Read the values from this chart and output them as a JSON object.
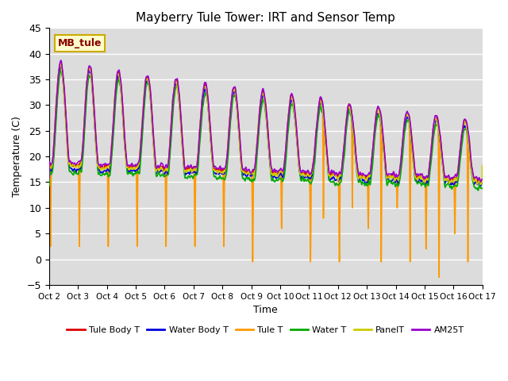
{
  "title": "Mayberry Tule Tower: IRT and Sensor Temp",
  "xlabel": "Time",
  "ylabel": "Temperature (C)",
  "ylim": [
    -5,
    45
  ],
  "xlim": [
    0,
    15
  ],
  "plot_bg": "#dcdcdc",
  "grid_color": "white",
  "series_colors": {
    "Tule Body T": "#dd0000",
    "Water Body T": "#0000dd",
    "Tule T": "#ff9900",
    "Water T": "#00aa00",
    "PanelT": "#cccc00",
    "AM25T": "#9900cc"
  },
  "xtick_labels": [
    "Oct 2",
    "Oct 3",
    "Oct 4",
    "Oct 5",
    "Oct 6",
    "Oct 7",
    "Oct 8",
    "Oct 9",
    "Oct 10",
    "Oct 11",
    "Oct 12",
    "Oct 13",
    "Oct 14",
    "Oct 15",
    "Oct 16",
    "Oct 17"
  ],
  "xtick_positions": [
    0,
    1,
    2,
    3,
    4,
    5,
    6,
    7,
    8,
    9,
    10,
    11,
    12,
    13,
    14,
    15
  ],
  "yticks": [
    -5,
    0,
    5,
    10,
    15,
    20,
    25,
    30,
    35,
    40,
    45
  ],
  "annotation_text": "MB_tule",
  "annotation_bg": "#ffffcc",
  "annotation_border": "#ccaa00",
  "linewidth": 1.2
}
